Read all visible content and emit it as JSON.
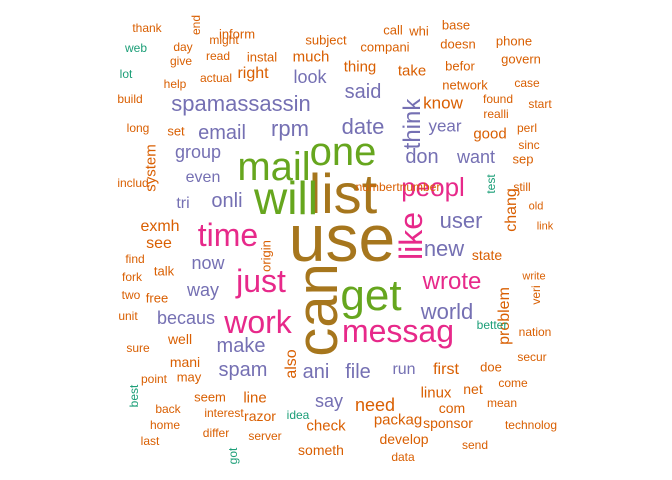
{
  "palette": {
    "teal": "#1b9e77",
    "orange": "#d95f02",
    "purple": "#7570b3",
    "pink": "#e7298a",
    "green": "#66a61e",
    "gold": "#a6761d"
  },
  "words": [
    {
      "text": "use",
      "color": "gold",
      "vertical": false
    },
    {
      "text": "can",
      "color": "gold",
      "vertical": true
    },
    {
      "text": "list",
      "color": "gold",
      "vertical": false
    },
    {
      "text": "will",
      "color": "green",
      "vertical": false
    },
    {
      "text": "mail",
      "color": "green",
      "vertical": false
    },
    {
      "text": "one",
      "color": "green",
      "vertical": false
    },
    {
      "text": "get",
      "color": "green",
      "vertical": false
    },
    {
      "text": "like",
      "color": "pink",
      "vertical": true
    },
    {
      "text": "messag",
      "color": "pink",
      "vertical": false
    },
    {
      "text": "time",
      "color": "pink",
      "vertical": false
    },
    {
      "text": "just",
      "color": "pink",
      "vertical": false
    },
    {
      "text": "work",
      "color": "pink",
      "vertical": false
    },
    {
      "text": "peopl",
      "color": "pink",
      "vertical": false
    },
    {
      "text": "wrote",
      "color": "pink",
      "vertical": false
    },
    {
      "text": "think",
      "color": "purple",
      "vertical": true
    },
    {
      "text": "spamassassin",
      "color": "purple",
      "vertical": false
    },
    {
      "text": "rpm",
      "color": "purple",
      "vertical": false
    },
    {
      "text": "date",
      "color": "purple",
      "vertical": false
    },
    {
      "text": "email",
      "color": "purple",
      "vertical": false
    },
    {
      "text": "onli",
      "color": "purple",
      "vertical": false
    },
    {
      "text": "make",
      "color": "purple",
      "vertical": false
    },
    {
      "text": "spam",
      "color": "purple",
      "vertical": false
    },
    {
      "text": "ani",
      "color": "purple",
      "vertical": false
    },
    {
      "text": "file",
      "color": "purple",
      "vertical": false
    },
    {
      "text": "new",
      "color": "purple",
      "vertical": false
    },
    {
      "text": "user",
      "color": "purple",
      "vertical": false
    },
    {
      "text": "world",
      "color": "purple",
      "vertical": false
    },
    {
      "text": "said",
      "color": "purple",
      "vertical": false
    },
    {
      "text": "don",
      "color": "purple",
      "vertical": false
    },
    {
      "text": "look",
      "color": "purple",
      "vertical": false
    },
    {
      "text": "group",
      "color": "purple",
      "vertical": false
    },
    {
      "text": "now",
      "color": "purple",
      "vertical": false
    },
    {
      "text": "way",
      "color": "purple",
      "vertical": false
    },
    {
      "text": "becaus",
      "color": "purple",
      "vertical": false
    },
    {
      "text": "run",
      "color": "purple",
      "vertical": false
    },
    {
      "text": "say",
      "color": "purple",
      "vertical": false
    },
    {
      "text": "want",
      "color": "purple",
      "vertical": false
    },
    {
      "text": "year",
      "color": "purple",
      "vertical": false
    },
    {
      "text": "tri",
      "color": "purple",
      "vertical": false
    },
    {
      "text": "even",
      "color": "purple",
      "vertical": false
    },
    {
      "text": "also",
      "color": "orange",
      "vertical": true
    },
    {
      "text": "exmh",
      "color": "orange",
      "vertical": false
    },
    {
      "text": "see",
      "color": "orange",
      "vertical": false
    },
    {
      "text": "system",
      "color": "orange",
      "vertical": true
    },
    {
      "text": "know",
      "color": "orange",
      "vertical": false
    },
    {
      "text": "need",
      "color": "orange",
      "vertical": false
    },
    {
      "text": "first",
      "color": "orange",
      "vertical": false
    },
    {
      "text": "problem",
      "color": "orange",
      "vertical": true
    },
    {
      "text": "chang",
      "color": "orange",
      "vertical": true
    },
    {
      "text": "state",
      "color": "orange",
      "vertical": false
    },
    {
      "text": "right",
      "color": "orange",
      "vertical": false
    },
    {
      "text": "thing",
      "color": "orange",
      "vertical": false
    },
    {
      "text": "take",
      "color": "orange",
      "vertical": false
    },
    {
      "text": "much",
      "color": "orange",
      "vertical": false
    },
    {
      "text": "line",
      "color": "orange",
      "vertical": false
    },
    {
      "text": "packag",
      "color": "orange",
      "vertical": false
    },
    {
      "text": "check",
      "color": "orange",
      "vertical": false
    },
    {
      "text": "razor",
      "color": "orange",
      "vertical": false
    },
    {
      "text": "good",
      "color": "orange",
      "vertical": false
    },
    {
      "text": "linux",
      "color": "orange",
      "vertical": false
    },
    {
      "text": "net",
      "color": "orange",
      "vertical": false
    },
    {
      "text": "com",
      "color": "orange",
      "vertical": false
    },
    {
      "text": "doe",
      "color": "orange",
      "vertical": false
    },
    {
      "text": "sponsor",
      "color": "orange",
      "vertical": false
    },
    {
      "text": "someth",
      "color": "orange",
      "vertical": false
    },
    {
      "text": "develop",
      "color": "orange",
      "vertical": false
    },
    {
      "text": "well",
      "color": "orange",
      "vertical": false
    },
    {
      "text": "mani",
      "color": "orange",
      "vertical": false
    },
    {
      "text": "may",
      "color": "orange",
      "vertical": false
    },
    {
      "text": "seem",
      "color": "orange",
      "vertical": false
    },
    {
      "text": "talk",
      "color": "orange",
      "vertical": false
    },
    {
      "text": "free",
      "color": "orange",
      "vertical": false
    },
    {
      "text": "set",
      "color": "orange",
      "vertical": false
    },
    {
      "text": "sep",
      "color": "orange",
      "vertical": false
    },
    {
      "text": "instal",
      "color": "orange",
      "vertical": false
    },
    {
      "text": "subject",
      "color": "orange",
      "vertical": false
    },
    {
      "text": "compani",
      "color": "orange",
      "vertical": false
    },
    {
      "text": "inform",
      "color": "orange",
      "vertical": false
    },
    {
      "text": "call",
      "color": "orange",
      "vertical": false
    },
    {
      "text": "whi",
      "color": "orange",
      "vertical": false
    },
    {
      "text": "base",
      "color": "orange",
      "vertical": false
    },
    {
      "text": "doesn",
      "color": "orange",
      "vertical": false
    },
    {
      "text": "phone",
      "color": "orange",
      "vertical": false
    },
    {
      "text": "govern",
      "color": "orange",
      "vertical": false
    },
    {
      "text": "befor",
      "color": "orange",
      "vertical": false
    },
    {
      "text": "network",
      "color": "orange",
      "vertical": false
    },
    {
      "text": "case",
      "color": "orange",
      "vertical": false
    },
    {
      "text": "found",
      "color": "orange",
      "vertical": false
    },
    {
      "text": "start",
      "color": "orange",
      "vertical": false
    },
    {
      "text": "realli",
      "color": "orange",
      "vertical": false
    },
    {
      "text": "perl",
      "color": "orange",
      "vertical": false
    },
    {
      "text": "sinc",
      "color": "orange",
      "vertical": false
    },
    {
      "text": "still",
      "color": "orange",
      "vertical": false
    },
    {
      "text": "old",
      "color": "orange",
      "vertical": false
    },
    {
      "text": "link",
      "color": "orange",
      "vertical": false
    },
    {
      "text": "veri",
      "color": "orange",
      "vertical": true
    },
    {
      "text": "write",
      "color": "orange",
      "vertical": false
    },
    {
      "text": "nation",
      "color": "orange",
      "vertical": false
    },
    {
      "text": "secur",
      "color": "orange",
      "vertical": false
    },
    {
      "text": "come",
      "color": "orange",
      "vertical": false
    },
    {
      "text": "mean",
      "color": "orange",
      "vertical": false
    },
    {
      "text": "technolog",
      "color": "orange",
      "vertical": false
    },
    {
      "text": "send",
      "color": "orange",
      "vertical": false
    },
    {
      "text": "data",
      "color": "orange",
      "vertical": false
    },
    {
      "text": "server",
      "color": "orange",
      "vertical": false
    },
    {
      "text": "differ",
      "color": "orange",
      "vertical": false
    },
    {
      "text": "interest",
      "color": "orange",
      "vertical": false
    },
    {
      "text": "home",
      "color": "orange",
      "vertical": false
    },
    {
      "text": "last",
      "color": "orange",
      "vertical": false
    },
    {
      "text": "back",
      "color": "orange",
      "vertical": false
    },
    {
      "text": "point",
      "color": "orange",
      "vertical": false
    },
    {
      "text": "sure",
      "color": "orange",
      "vertical": false
    },
    {
      "text": "unit",
      "color": "orange",
      "vertical": false
    },
    {
      "text": "two",
      "color": "orange",
      "vertical": false
    },
    {
      "text": "fork",
      "color": "orange",
      "vertical": false
    },
    {
      "text": "find",
      "color": "orange",
      "vertical": false
    },
    {
      "text": "origin",
      "color": "orange",
      "vertical": true
    },
    {
      "text": "includ",
      "color": "orange",
      "vertical": false
    },
    {
      "text": "long",
      "color": "orange",
      "vertical": false
    },
    {
      "text": "build",
      "color": "orange",
      "vertical": false
    },
    {
      "text": "help",
      "color": "orange",
      "vertical": false
    },
    {
      "text": "actual",
      "color": "orange",
      "vertical": false
    },
    {
      "text": "give",
      "color": "orange",
      "vertical": false
    },
    {
      "text": "read",
      "color": "orange",
      "vertical": false
    },
    {
      "text": "day",
      "color": "orange",
      "vertical": false
    },
    {
      "text": "might",
      "color": "orange",
      "vertical": false
    },
    {
      "text": "thank",
      "color": "orange",
      "vertical": false
    },
    {
      "text": "end",
      "color": "orange",
      "vertical": true
    },
    {
      "text": "numbertnumber",
      "color": "orange",
      "vertical": false
    },
    {
      "text": "got",
      "color": "teal",
      "vertical": true
    },
    {
      "text": "web",
      "color": "teal",
      "vertical": false
    },
    {
      "text": "lot",
      "color": "teal",
      "vertical": false
    },
    {
      "text": "test",
      "color": "teal",
      "vertical": true
    },
    {
      "text": "better",
      "color": "teal",
      "vertical": false
    },
    {
      "text": "best",
      "color": "teal",
      "vertical": true
    },
    {
      "text": "idea",
      "color": "teal",
      "vertical": false
    }
  ]
}
